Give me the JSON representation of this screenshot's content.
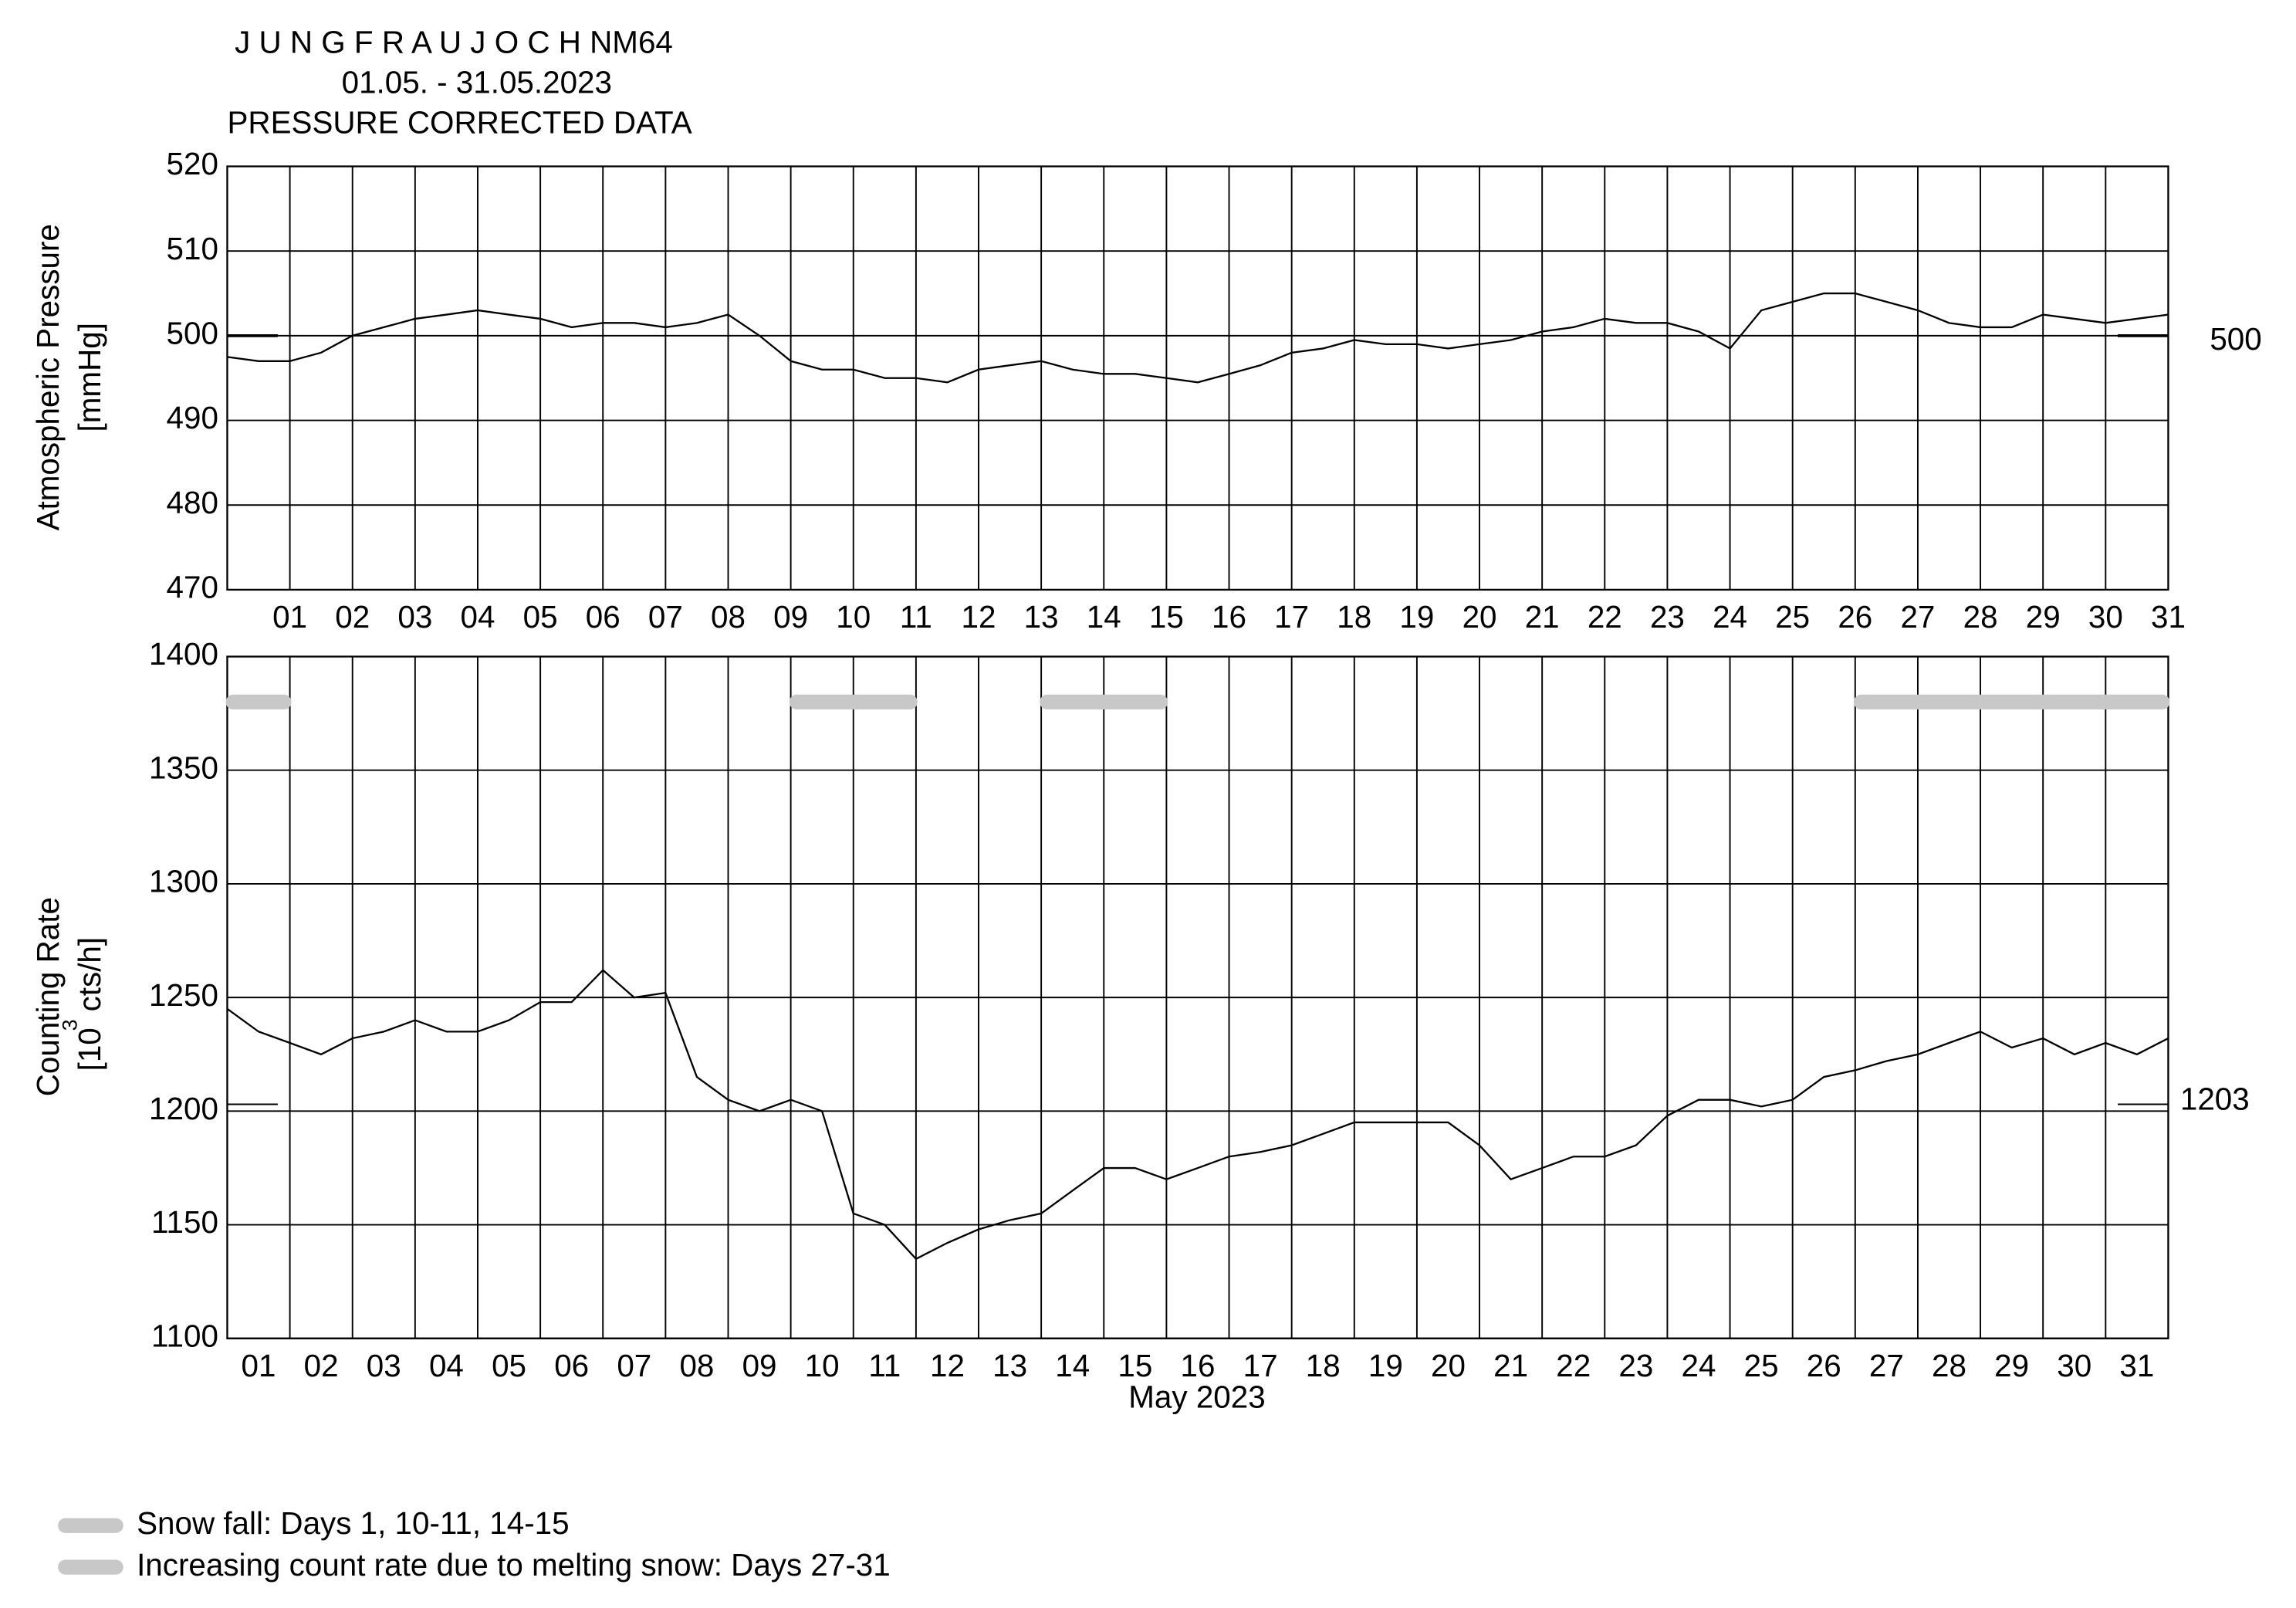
{
  "chart_data": [
    {
      "type": "line",
      "title": "J U N G F R A U J O C H  NM64",
      "subtitle": "01.05. - 31.05.2023",
      "subtitle2": "PRESSURE CORRECTED DATA",
      "ylabel": "Atmospheric Pressure",
      "ylabel_unit": "[mmHg]",
      "xlim": [
        0,
        31
      ],
      "xticks": [
        {
          "value": 1,
          "label": "01"
        },
        {
          "value": 2,
          "label": "02"
        },
        {
          "value": 3,
          "label": "03"
        },
        {
          "value": 4,
          "label": "04"
        },
        {
          "value": 5,
          "label": "05"
        },
        {
          "value": 6,
          "label": "06"
        },
        {
          "value": 7,
          "label": "07"
        },
        {
          "value": 8,
          "label": "08"
        },
        {
          "value": 9,
          "label": "09"
        },
        {
          "value": 10,
          "label": "10"
        },
        {
          "value": 11,
          "label": "11"
        },
        {
          "value": 12,
          "label": "12"
        },
        {
          "value": 13,
          "label": "13"
        },
        {
          "value": 14,
          "label": "14"
        },
        {
          "value": 15,
          "label": "15"
        },
        {
          "value": 16,
          "label": "16"
        },
        {
          "value": 17,
          "label": "17"
        },
        {
          "value": 18,
          "label": "18"
        },
        {
          "value": 19,
          "label": "19"
        },
        {
          "value": 20,
          "label": "20"
        },
        {
          "value": 21,
          "label": "21"
        },
        {
          "value": 22,
          "label": "22"
        },
        {
          "value": 23,
          "label": "23"
        },
        {
          "value": 24,
          "label": "24"
        },
        {
          "value": 25,
          "label": "25"
        },
        {
          "value": 26,
          "label": "26"
        },
        {
          "value": 27,
          "label": "27"
        },
        {
          "value": 28,
          "label": "28"
        },
        {
          "value": 29,
          "label": "29"
        },
        {
          "value": 30,
          "label": "30"
        },
        {
          "value": 31,
          "label": "31"
        }
      ],
      "ylim": [
        470,
        520
      ],
      "yticks": [
        470,
        480,
        490,
        500,
        510,
        520
      ],
      "grid": true,
      "reference": 500,
      "x": [
        0,
        0.5,
        1,
        1.5,
        2,
        2.5,
        3,
        3.5,
        4,
        4.5,
        5,
        5.5,
        6,
        6.5,
        7,
        7.5,
        8,
        8.5,
        9,
        9.5,
        10,
        10.5,
        11,
        11.5,
        12,
        12.5,
        13,
        13.5,
        14,
        14.5,
        15,
        15.5,
        16,
        16.5,
        17,
        17.5,
        18,
        18.5,
        19,
        19.5,
        20,
        20.5,
        21,
        21.5,
        22,
        22.5,
        23,
        23.5,
        24,
        24.5,
        25,
        25.5,
        26,
        26.5,
        27,
        27.5,
        28,
        28.5,
        29,
        29.5,
        30,
        30.5,
        31
      ],
      "series": [
        {
          "color": "#000000",
          "values": [
            497.5,
            497,
            497,
            498,
            500,
            501,
            502,
            502.5,
            503,
            502.5,
            502,
            501,
            501.5,
            501.5,
            501,
            501.5,
            502.5,
            500,
            497,
            496,
            496,
            495,
            495,
            494.5,
            496,
            496.5,
            497,
            496,
            495.5,
            495.5,
            495,
            494.5,
            495.5,
            496.5,
            498,
            498.5,
            499.5,
            499,
            499,
            498.5,
            499,
            499.5,
            500.5,
            501,
            502,
            501.5,
            501.5,
            500.5,
            498.5,
            503,
            504,
            505,
            505,
            504,
            503,
            501.5,
            501,
            501,
            502.5,
            502,
            501.5,
            502,
            502.5
          ]
        }
      ]
    },
    {
      "type": "line",
      "ylabel": "Counting Rate",
      "ylabel_unit_a": "[10",
      "ylabel_unit_sup": "3",
      "ylabel_unit_b": "cts/h]",
      "xlabel": "May 2023",
      "xlim": [
        0,
        31
      ],
      "xticks": [
        {
          "value": 0.5,
          "label": "01"
        },
        {
          "value": 1.5,
          "label": "02"
        },
        {
          "value": 2.5,
          "label": "03"
        },
        {
          "value": 3.5,
          "label": "04"
        },
        {
          "value": 4.5,
          "label": "05"
        },
        {
          "value": 5.5,
          "label": "06"
        },
        {
          "value": 6.5,
          "label": "07"
        },
        {
          "value": 7.5,
          "label": "08"
        },
        {
          "value": 8.5,
          "label": "09"
        },
        {
          "value": 9.5,
          "label": "10"
        },
        {
          "value": 10.5,
          "label": "11"
        },
        {
          "value": 11.5,
          "label": "12"
        },
        {
          "value": 12.5,
          "label": "13"
        },
        {
          "value": 13.5,
          "label": "14"
        },
        {
          "value": 14.5,
          "label": "15"
        },
        {
          "value": 15.5,
          "label": "16"
        },
        {
          "value": 16.5,
          "label": "17"
        },
        {
          "value": 17.5,
          "label": "18"
        },
        {
          "value": 18.5,
          "label": "19"
        },
        {
          "value": 19.5,
          "label": "20"
        },
        {
          "value": 20.5,
          "label": "21"
        },
        {
          "value": 21.5,
          "label": "22"
        },
        {
          "value": 22.5,
          "label": "23"
        },
        {
          "value": 23.5,
          "label": "24"
        },
        {
          "value": 24.5,
          "label": "25"
        },
        {
          "value": 25.5,
          "label": "26"
        },
        {
          "value": 26.5,
          "label": "27"
        },
        {
          "value": 27.5,
          "label": "28"
        },
        {
          "value": 28.5,
          "label": "29"
        },
        {
          "value": 29.5,
          "label": "30"
        },
        {
          "value": 30.5,
          "label": "31"
        }
      ],
      "xgrid": [
        1,
        2,
        3,
        4,
        5,
        6,
        7,
        8,
        9,
        10,
        11,
        12,
        13,
        14,
        15,
        16,
        17,
        18,
        19,
        20,
        21,
        22,
        23,
        24,
        25,
        26,
        27,
        28,
        29,
        30
      ],
      "ylim": [
        1100,
        1400
      ],
      "yticks": [
        1100,
        1150,
        1200,
        1250,
        1300,
        1350,
        1400
      ],
      "grid": true,
      "reference": 1203,
      "snow_level": 1380,
      "snow_color": "#c8c8c8",
      "snow_periods": [
        [
          0,
          1
        ],
        [
          9,
          11
        ],
        [
          13,
          15
        ],
        [
          26,
          31
        ]
      ],
      "x": [
        0,
        0.5,
        1,
        1.5,
        2,
        2.5,
        3,
        3.5,
        4,
        4.5,
        5,
        5.5,
        6,
        6.5,
        7,
        7.5,
        8,
        8.5,
        9,
        9.5,
        10,
        10.5,
        11,
        11.5,
        12,
        12.5,
        13,
        13.5,
        14,
        14.5,
        15,
        15.5,
        16,
        16.5,
        17,
        17.5,
        18,
        18.5,
        19,
        19.5,
        20,
        20.5,
        21,
        21.5,
        22,
        22.5,
        23,
        23.5,
        24,
        24.5,
        25,
        25.5,
        26,
        26.5,
        27,
        27.5,
        28,
        28.5,
        29,
        29.5,
        30,
        30.5,
        31
      ],
      "series": [
        {
          "color": "#000000",
          "values": [
            1245,
            1235,
            1230,
            1225,
            1232,
            1235,
            1240,
            1235,
            1235,
            1240,
            1248,
            1248,
            1262,
            1250,
            1252,
            1215,
            1205,
            1200,
            1205,
            1200,
            1155,
            1150,
            1135,
            1142,
            1148,
            1152,
            1155,
            1165,
            1175,
            1175,
            1170,
            1175,
            1180,
            1182,
            1185,
            1190,
            1195,
            1195,
            1195,
            1195,
            1185,
            1170,
            1175,
            1180,
            1180,
            1185,
            1198,
            1205,
            1205,
            1202,
            1205,
            1215,
            1218,
            1222,
            1225,
            1230,
            1235,
            1228,
            1232,
            1225,
            1230,
            1225,
            1232
          ]
        }
      ],
      "legend": [
        "Snow fall: Days 1, 10-11, 14-15",
        "Increasing count rate due to melting snow: Days 27-31"
      ]
    }
  ]
}
